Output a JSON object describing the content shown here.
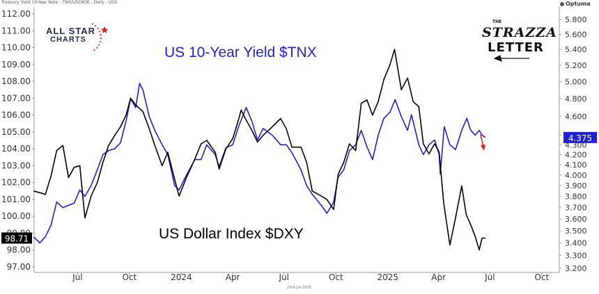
{
  "header": {
    "title": "Treasury Yield 10-Year Note - TNX/USCBOE - Daily - USD",
    "brand": "Optuma",
    "footer_date": "23rd Jun 2025"
  },
  "logos": {
    "all_star_line1": "ALL STAR",
    "all_star_line2": "CHARTS",
    "strazza_the": "THE",
    "strazza_name": "STRAZZA",
    "strazza_letter": "LETTER"
  },
  "labels": {
    "tnx_title": "US 10-Year Yield $TNX",
    "dxy_title": "US Dollar Index $DXY",
    "dxy_last": "98.71",
    "tnx_last": "4.375"
  },
  "colors": {
    "tnx": "#1f1fd6",
    "dxy": "#000000",
    "arrow": "#e02020",
    "last_tnx_bg": "#1f1fd6",
    "last_dxy_bg": "#000000",
    "logo_star": "#d12b2b",
    "logo_navy": "#1c2a57"
  },
  "chart_data": {
    "type": "line",
    "title": "",
    "x_ticks": [
      "Jul",
      "Oct",
      "2024",
      "Apr",
      "Jul",
      "Oct",
      "2025",
      "Apr",
      "Jul",
      "Oct"
    ],
    "x_tick_dates": [
      "2023-07-01",
      "2023-10-01",
      "2024-01-01",
      "2024-04-01",
      "2024-07-01",
      "2024-10-01",
      "2025-01-01",
      "2025-04-01",
      "2025-07-01",
      "2025-10-01"
    ],
    "x_start": "2023-04-15",
    "x_end": "2025-11-01",
    "y_left": {
      "label": "",
      "range": [
        97.0,
        112.0
      ],
      "ticks": [
        "97.00",
        "98.00",
        "99.00",
        "100.00",
        "101.00",
        "102.00",
        "103.00",
        "104.00",
        "105.00",
        "106.00",
        "107.00",
        "108.00",
        "109.00",
        "110.00",
        "111.00",
        "112.00"
      ]
    },
    "y_right": {
      "label": "",
      "scale": "log",
      "range": [
        3.2,
        5.88
      ],
      "ticks": [
        "3.200",
        "3.300",
        "3.400",
        "3.500",
        "3.600",
        "3.700",
        "3.800",
        "3.900",
        "4.000",
        "4.100",
        "4.200",
        "4.300",
        "4.400",
        "4.600",
        "4.800",
        "5.000",
        "5.200",
        "5.400",
        "5.600",
        "5.800"
      ]
    },
    "grid": false,
    "legend": "none",
    "series": [
      {
        "name": "US Dollar Index $DXY",
        "axis": "left",
        "color": "#000000",
        "points": [
          [
            "2023-04-14",
            101.5
          ],
          [
            "2023-04-25",
            101.4
          ],
          [
            "2023-05-05",
            101.3
          ],
          [
            "2023-05-15",
            102.4
          ],
          [
            "2023-05-25",
            103.9
          ],
          [
            "2023-06-05",
            104.2
          ],
          [
            "2023-06-15",
            102.3
          ],
          [
            "2023-06-25",
            102.9
          ],
          [
            "2023-07-05",
            103.0
          ],
          [
            "2023-07-14",
            99.9
          ],
          [
            "2023-07-25",
            101.2
          ],
          [
            "2023-08-05",
            102.0
          ],
          [
            "2023-08-15",
            103.2
          ],
          [
            "2023-08-25",
            104.2
          ],
          [
            "2023-09-05",
            104.8
          ],
          [
            "2023-09-15",
            105.3
          ],
          [
            "2023-09-25",
            106.0
          ],
          [
            "2023-10-03",
            107.0
          ],
          [
            "2023-10-12",
            106.6
          ],
          [
            "2023-10-25",
            106.2
          ],
          [
            "2023-11-05",
            105.2
          ],
          [
            "2023-11-15",
            104.2
          ],
          [
            "2023-11-28",
            103.0
          ],
          [
            "2023-12-08",
            103.8
          ],
          [
            "2023-12-20",
            102.2
          ],
          [
            "2023-12-28",
            101.2
          ],
          [
            "2024-01-10",
            102.3
          ],
          [
            "2024-01-25",
            103.4
          ],
          [
            "2024-02-05",
            104.3
          ],
          [
            "2024-02-15",
            104.5
          ],
          [
            "2024-03-01",
            103.8
          ],
          [
            "2024-03-08",
            102.8
          ],
          [
            "2024-03-20",
            104.0
          ],
          [
            "2024-04-01",
            104.6
          ],
          [
            "2024-04-12",
            105.8
          ],
          [
            "2024-04-16",
            106.3
          ],
          [
            "2024-04-25",
            105.7
          ],
          [
            "2024-05-05",
            105.1
          ],
          [
            "2024-05-15",
            104.4
          ],
          [
            "2024-05-25",
            104.8
          ],
          [
            "2024-06-10",
            105.3
          ],
          [
            "2024-06-25",
            105.8
          ],
          [
            "2024-07-05",
            105.2
          ],
          [
            "2024-07-15",
            104.1
          ],
          [
            "2024-07-31",
            104.1
          ],
          [
            "2024-08-10",
            103.2
          ],
          [
            "2024-08-20",
            101.5
          ],
          [
            "2024-09-05",
            101.2
          ],
          [
            "2024-09-15",
            101.0
          ],
          [
            "2024-09-27",
            100.4
          ],
          [
            "2024-10-05",
            102.5
          ],
          [
            "2024-10-15",
            103.2
          ],
          [
            "2024-10-25",
            104.3
          ],
          [
            "2024-11-05",
            103.9
          ],
          [
            "2024-11-15",
            106.7
          ],
          [
            "2024-11-25",
            106.9
          ],
          [
            "2024-12-05",
            106.0
          ],
          [
            "2024-12-15",
            106.8
          ],
          [
            "2024-12-25",
            108.1
          ],
          [
            "2025-01-05",
            109.0
          ],
          [
            "2025-01-13",
            109.9
          ],
          [
            "2025-01-25",
            107.5
          ],
          [
            "2025-02-05",
            108.2
          ],
          [
            "2025-02-15",
            106.8
          ],
          [
            "2025-02-25",
            106.5
          ],
          [
            "2025-03-05",
            104.3
          ],
          [
            "2025-03-15",
            103.7
          ],
          [
            "2025-03-25",
            104.3
          ],
          [
            "2025-04-02",
            103.8
          ],
          [
            "2025-04-10",
            100.8
          ],
          [
            "2025-04-21",
            98.3
          ],
          [
            "2025-05-01",
            99.9
          ],
          [
            "2025-05-12",
            101.8
          ],
          [
            "2025-05-20",
            100.1
          ],
          [
            "2025-05-28",
            99.5
          ],
          [
            "2025-06-05",
            98.8
          ],
          [
            "2025-06-12",
            98.0
          ],
          [
            "2025-06-17",
            98.7
          ],
          [
            "2025-06-23",
            98.71
          ]
        ]
      },
      {
        "name": "US 10-Year Yield $TNX",
        "axis": "right",
        "color": "#1f1fd6",
        "points": [
          [
            "2023-04-14",
            3.45
          ],
          [
            "2023-04-25",
            3.4
          ],
          [
            "2023-05-05",
            3.45
          ],
          [
            "2023-05-15",
            3.55
          ],
          [
            "2023-05-25",
            3.75
          ],
          [
            "2023-06-05",
            3.7
          ],
          [
            "2023-06-15",
            3.72
          ],
          [
            "2023-06-25",
            3.74
          ],
          [
            "2023-07-05",
            3.86
          ],
          [
            "2023-07-14",
            3.8
          ],
          [
            "2023-07-25",
            3.9
          ],
          [
            "2023-08-05",
            4.05
          ],
          [
            "2023-08-15",
            4.2
          ],
          [
            "2023-08-25",
            4.24
          ],
          [
            "2023-09-05",
            4.26
          ],
          [
            "2023-09-15",
            4.32
          ],
          [
            "2023-09-25",
            4.55
          ],
          [
            "2023-10-03",
            4.8
          ],
          [
            "2023-10-12",
            4.7
          ],
          [
            "2023-10-19",
            4.98
          ],
          [
            "2023-10-25",
            4.9
          ],
          [
            "2023-11-05",
            4.6
          ],
          [
            "2023-11-15",
            4.45
          ],
          [
            "2023-11-28",
            4.3
          ],
          [
            "2023-12-08",
            4.2
          ],
          [
            "2023-12-20",
            3.9
          ],
          [
            "2023-12-28",
            3.86
          ],
          [
            "2024-01-10",
            4.0
          ],
          [
            "2024-01-25",
            4.15
          ],
          [
            "2024-02-05",
            4.15
          ],
          [
            "2024-02-15",
            4.3
          ],
          [
            "2024-03-01",
            4.2
          ],
          [
            "2024-03-08",
            4.08
          ],
          [
            "2024-03-20",
            4.27
          ],
          [
            "2024-04-01",
            4.3
          ],
          [
            "2024-04-12",
            4.5
          ],
          [
            "2024-04-25",
            4.7
          ],
          [
            "2024-05-05",
            4.55
          ],
          [
            "2024-05-15",
            4.35
          ],
          [
            "2024-05-25",
            4.47
          ],
          [
            "2024-06-10",
            4.4
          ],
          [
            "2024-06-25",
            4.3
          ],
          [
            "2024-07-05",
            4.3
          ],
          [
            "2024-07-15",
            4.22
          ],
          [
            "2024-07-31",
            4.05
          ],
          [
            "2024-08-10",
            3.9
          ],
          [
            "2024-08-20",
            3.82
          ],
          [
            "2024-09-05",
            3.72
          ],
          [
            "2024-09-15",
            3.65
          ],
          [
            "2024-09-27",
            3.75
          ],
          [
            "2024-10-05",
            3.98
          ],
          [
            "2024-10-15",
            4.05
          ],
          [
            "2024-10-25",
            4.24
          ],
          [
            "2024-11-05",
            4.3
          ],
          [
            "2024-11-15",
            4.45
          ],
          [
            "2024-11-25",
            4.28
          ],
          [
            "2024-12-05",
            4.15
          ],
          [
            "2024-12-15",
            4.4
          ],
          [
            "2024-12-25",
            4.58
          ],
          [
            "2025-01-05",
            4.65
          ],
          [
            "2025-01-14",
            4.79
          ],
          [
            "2025-01-25",
            4.6
          ],
          [
            "2025-02-05",
            4.45
          ],
          [
            "2025-02-12",
            4.62
          ],
          [
            "2025-02-25",
            4.3
          ],
          [
            "2025-03-05",
            4.2
          ],
          [
            "2025-03-15",
            4.3
          ],
          [
            "2025-03-25",
            4.35
          ],
          [
            "2025-04-02",
            4.2
          ],
          [
            "2025-04-04",
            4.01
          ],
          [
            "2025-04-11",
            4.49
          ],
          [
            "2025-04-21",
            4.3
          ],
          [
            "2025-05-01",
            4.25
          ],
          [
            "2025-05-12",
            4.45
          ],
          [
            "2025-05-21",
            4.58
          ],
          [
            "2025-05-28",
            4.45
          ],
          [
            "2025-06-05",
            4.4
          ],
          [
            "2025-06-12",
            4.45
          ],
          [
            "2025-06-17",
            4.4
          ],
          [
            "2025-06-23",
            4.375
          ]
        ]
      }
    ]
  }
}
